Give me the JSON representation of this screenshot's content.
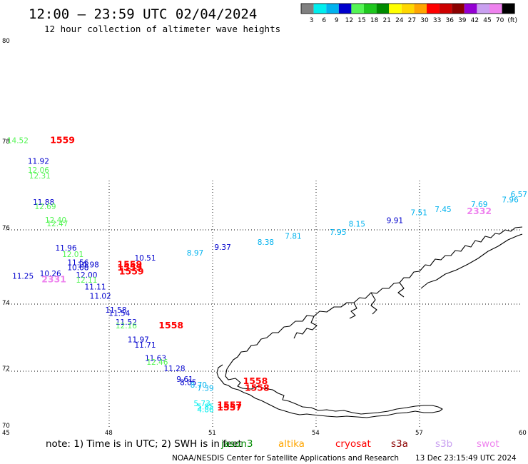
{
  "header": {
    "title": "12:00 – 23:59 UTC 02/04/2024",
    "subtitle": "12 hour collection of altimeter wave heights"
  },
  "colorbar": {
    "colors": [
      "#808080",
      "#00eeee",
      "#00b2ee",
      "#0000cd",
      "#54f554",
      "#1ec81e",
      "#008b00",
      "#ffff00",
      "#ffd700",
      "#ffa500",
      "#ff0000",
      "#cd0000",
      "#8b0000",
      "#9400d3",
      "#c9a0f0",
      "#ee82ee",
      "#000000"
    ],
    "labels": [
      "3",
      "6",
      "9",
      "12",
      "15",
      "18",
      "21",
      "24",
      "27",
      "30",
      "33",
      "36",
      "39",
      "42",
      "45",
      "70",
      "(ft)"
    ]
  },
  "map": {
    "lat_ticks": [
      "80",
      "78",
      "76",
      "74",
      "72",
      "70"
    ],
    "lon_ticks": [
      "45",
      "48",
      "51",
      "54",
      "57",
      "60"
    ],
    "lon_range": [
      45,
      60
    ],
    "lat_range": [
      70,
      80
    ],
    "wave_heights": [
      {
        "v": "14.52",
        "lon": 45.35,
        "lat": 77.96,
        "color": "#54f554"
      },
      {
        "v": "11.92",
        "lon": 45.95,
        "lat": 77.48,
        "color": "#0000cd"
      },
      {
        "v": "12.06",
        "lon": 45.95,
        "lat": 77.28,
        "color": "#54f554"
      },
      {
        "v": "12.31",
        "lon": 45.99,
        "lat": 77.15,
        "color": "#54f554"
      },
      {
        "v": "11.88",
        "lon": 46.1,
        "lat": 76.54,
        "color": "#0000cd"
      },
      {
        "v": "12.69",
        "lon": 46.15,
        "lat": 76.44,
        "color": "#54f554"
      },
      {
        "v": "12.40",
        "lon": 46.45,
        "lat": 76.13,
        "color": "#54f554"
      },
      {
        "v": "12.47",
        "lon": 46.5,
        "lat": 76.05,
        "color": "#54f554"
      },
      {
        "v": "11.96",
        "lon": 46.75,
        "lat": 75.41,
        "color": "#0000cd"
      },
      {
        "v": "12.01",
        "lon": 46.95,
        "lat": 75.24,
        "color": "#54f554"
      },
      {
        "v": "11.56",
        "lon": 47.1,
        "lat": 75.02,
        "color": "#0000cd"
      },
      {
        "v": "10.68",
        "lon": 47.1,
        "lat": 74.89,
        "color": "#0000cd"
      },
      {
        "v": "10.98",
        "lon": 47.4,
        "lat": 74.96,
        "color": "#0000cd"
      },
      {
        "v": "10.26",
        "lon": 46.3,
        "lat": 74.72,
        "color": "#0000cd"
      },
      {
        "v": "11.25",
        "lon": 45.5,
        "lat": 74.66,
        "color": "#0000cd"
      },
      {
        "v": "12.00",
        "lon": 47.35,
        "lat": 74.69,
        "color": "#0000cd"
      },
      {
        "v": "12.11",
        "lon": 47.35,
        "lat": 74.55,
        "color": "#54f554"
      },
      {
        "v": "11.11",
        "lon": 47.6,
        "lat": 74.37,
        "color": "#0000cd"
      },
      {
        "v": "11.02",
        "lon": 47.75,
        "lat": 74.12,
        "color": "#0000cd"
      },
      {
        "v": "10.51",
        "lon": 49.05,
        "lat": 75.14,
        "color": "#0000cd"
      },
      {
        "v": "8.97",
        "lon": 50.5,
        "lat": 75.28,
        "color": "#00b2ee"
      },
      {
        "v": "9.37",
        "lon": 51.3,
        "lat": 75.43,
        "color": "#0000cd"
      },
      {
        "v": "8.38",
        "lon": 52.55,
        "lat": 75.56,
        "color": "#00b2ee"
      },
      {
        "v": "7.81",
        "lon": 53.35,
        "lat": 75.72,
        "color": "#00b2ee"
      },
      {
        "v": "7.95",
        "lon": 54.65,
        "lat": 75.83,
        "color": "#00b2ee"
      },
      {
        "v": "8.15",
        "lon": 55.2,
        "lat": 76.04,
        "color": "#00b2ee"
      },
      {
        "v": "9.91",
        "lon": 56.3,
        "lat": 76.12,
        "color": "#0000cd"
      },
      {
        "v": "7.51",
        "lon": 57.0,
        "lat": 76.3,
        "color": "#00b2ee"
      },
      {
        "v": "7.45",
        "lon": 57.7,
        "lat": 76.38,
        "color": "#00b2ee"
      },
      {
        "v": "7.69",
        "lon": 58.75,
        "lat": 76.49,
        "color": "#00b2ee"
      },
      {
        "v": "7.96",
        "lon": 59.65,
        "lat": 76.6,
        "color": "#00b2ee"
      },
      {
        "v": "6.57",
        "lon": 61.05,
        "lat": 76.72,
        "color": "#00b2ee"
      },
      {
        "v": "11.58",
        "lon": 48.2,
        "lat": 73.72,
        "color": "#0000cd"
      },
      {
        "v": "11.54",
        "lon": 48.3,
        "lat": 73.62,
        "color": "#0000cd"
      },
      {
        "v": "11.52",
        "lon": 48.5,
        "lat": 73.35,
        "color": "#0000cd"
      },
      {
        "v": "12.16",
        "lon": 48.5,
        "lat": 73.24,
        "color": "#54f554"
      },
      {
        "v": "11.97",
        "lon": 48.85,
        "lat": 72.82,
        "color": "#0000cd"
      },
      {
        "v": "11.71",
        "lon": 49.05,
        "lat": 72.65,
        "color": "#0000cd"
      },
      {
        "v": "11.63",
        "lon": 49.35,
        "lat": 72.25,
        "color": "#0000cd"
      },
      {
        "v": "12.46",
        "lon": 49.4,
        "lat": 72.13,
        "color": "#54f554"
      },
      {
        "v": "11.28",
        "lon": 49.9,
        "lat": 71.93,
        "color": "#0000cd"
      },
      {
        "v": "9.61",
        "lon": 50.2,
        "lat": 71.55,
        "color": "#0000cd"
      },
      {
        "v": "8.05",
        "lon": 50.3,
        "lat": 71.43,
        "color": "#0000cd"
      },
      {
        "v": "8.70",
        "lon": 50.6,
        "lat": 71.34,
        "color": "#00b2ee"
      },
      {
        "v": "7.39",
        "lon": 50.8,
        "lat": 71.23,
        "color": "#00b2ee"
      },
      {
        "v": "5.73",
        "lon": 50.7,
        "lat": 70.68,
        "color": "#00eeee"
      },
      {
        "v": "5.85",
        "lon": 50.8,
        "lat": 70.57,
        "color": "#00eeee"
      },
      {
        "v": "4.86",
        "lon": 50.8,
        "lat": 70.47,
        "color": "#00eeee"
      }
    ],
    "cycle_labels": [
      {
        "v": "1559",
        "lon": 46.65,
        "lat": 77.96,
        "color": "#ff0000"
      },
      {
        "v": "1559",
        "lon": 48.6,
        "lat": 74.96,
        "color": "#ff0000"
      },
      {
        "v": "1559",
        "lon": 48.6,
        "lat": 74.88,
        "color": "#ff0000"
      },
      {
        "v": "1559",
        "lon": 48.65,
        "lat": 74.77,
        "color": "#ff0000"
      },
      {
        "v": "2331",
        "lon": 46.4,
        "lat": 74.56,
        "color": "#ee82ee"
      },
      {
        "v": "2332",
        "lon": 58.75,
        "lat": 76.33,
        "color": "#ee82ee"
      },
      {
        "v": "1558",
        "lon": 49.8,
        "lat": 73.24,
        "color": "#ff0000"
      },
      {
        "v": "1558",
        "lon": 52.25,
        "lat": 71.47,
        "color": "#ff0000"
      },
      {
        "v": "1558",
        "lon": 52.3,
        "lat": 71.23,
        "color": "#ff0000"
      },
      {
        "v": "1557",
        "lon": 51.5,
        "lat": 70.62,
        "color": "#ff0000"
      },
      {
        "v": "1557",
        "lon": 51.5,
        "lat": 70.53,
        "color": "#ff0000"
      }
    ]
  },
  "footer": {
    "note": "note:  1) Time is in UTC;  2) SWH is in feet",
    "satellites": [
      {
        "name": "jason3",
        "color": "#008b00"
      },
      {
        "name": "altika",
        "color": "#ffa500"
      },
      {
        "name": "cryosat",
        "color": "#ff0000"
      },
      {
        "name": "s3a",
        "color": "#8b0000"
      },
      {
        "name": "s3b",
        "color": "#c9a0f0"
      },
      {
        "name": "swot",
        "color": "#ee82ee"
      }
    ],
    "credit": "NOAA/NESDIS Center for Satellite Applications and Research",
    "timestamp": "13 Dec 23:15:49 UTC 2024"
  }
}
